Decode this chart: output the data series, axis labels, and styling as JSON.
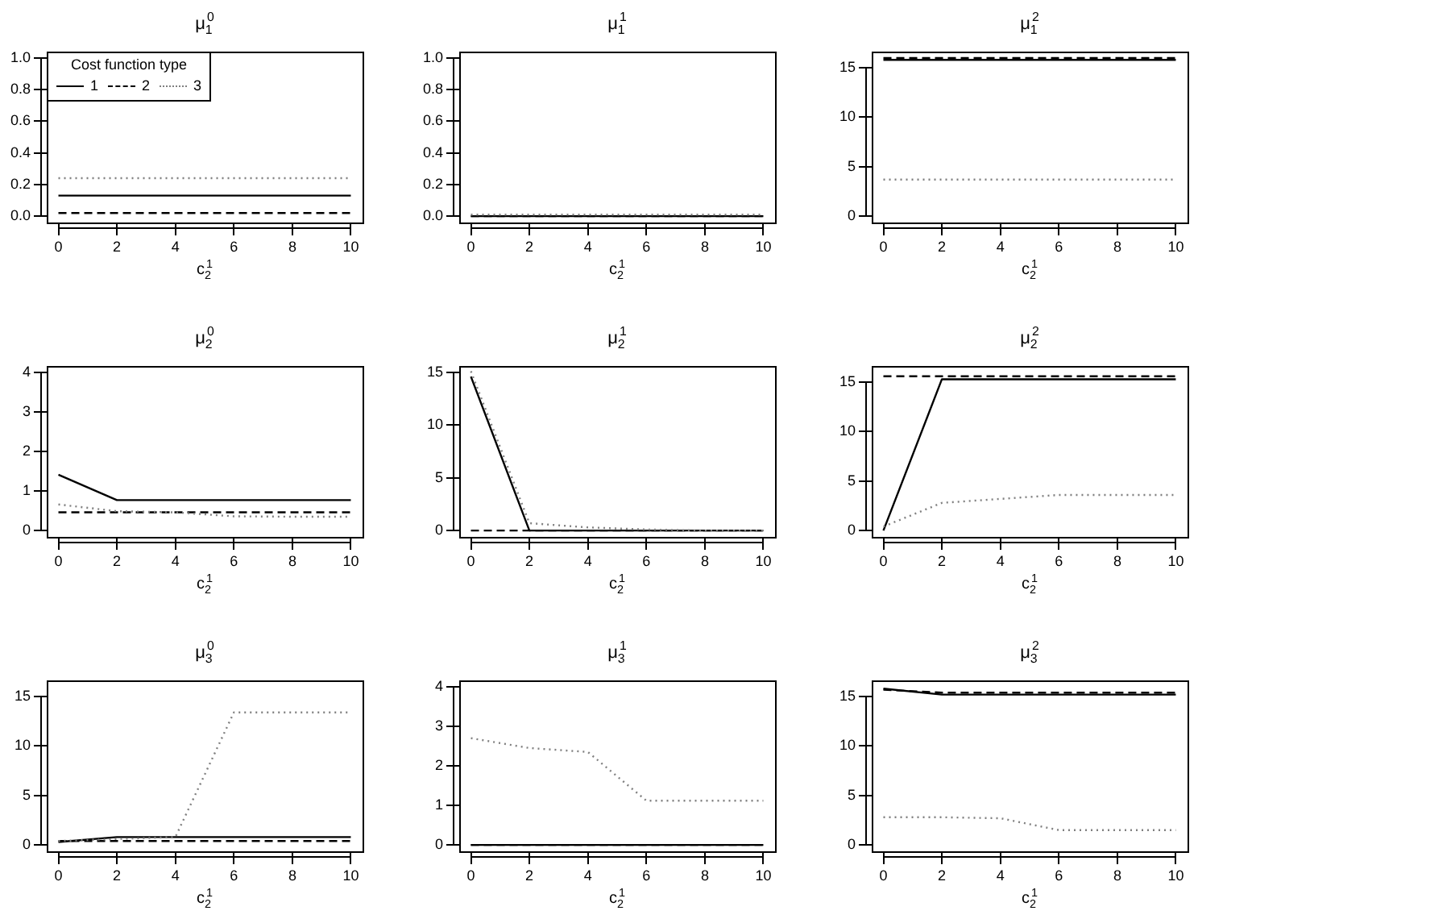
{
  "chart_data": [
    {
      "type": "line",
      "title": "μ$_{1}$$^{0}$",
      "xlabel": "c$_{2}$$^{1}$",
      "x": [
        0,
        2,
        4,
        6,
        8,
        10
      ],
      "xlim": [
        -0.4,
        10.4
      ],
      "xticks": [
        0,
        2,
        4,
        6,
        8,
        10
      ],
      "ylim": [
        -0.04,
        1.04
      ],
      "yticks": [
        {
          "value": 0,
          "label": "0.0"
        },
        {
          "value": 0.2,
          "label": "0.2"
        },
        {
          "value": 0.4,
          "label": "0.4"
        },
        {
          "value": 0.6,
          "label": "0.6"
        },
        {
          "value": 0.8,
          "label": "0.8"
        },
        {
          "value": 1,
          "label": "1.0"
        }
      ],
      "legend": "top left",
      "legend_title": "Cost function type",
      "series": [
        {
          "name": "1",
          "color": "#000000",
          "line_style": "solid",
          "values": [
            0.13,
            0.13,
            0.13,
            0.13,
            0.13,
            0.13
          ]
        },
        {
          "name": "2",
          "color": "#000000",
          "line_style": "dashed",
          "values": [
            0.02,
            0.02,
            0.02,
            0.02,
            0.02,
            0.02
          ]
        },
        {
          "name": "3",
          "color": "#808080",
          "line_style": "dotted",
          "values": [
            0.24,
            0.24,
            0.24,
            0.24,
            0.24,
            0.24
          ]
        }
      ]
    },
    {
      "type": "line",
      "title": "μ$_{1}$$^{1}$",
      "xlabel": "c$_{2}$$^{1}$",
      "x": [
        0,
        2,
        4,
        6,
        8,
        10
      ],
      "xlim": [
        -0.4,
        10.4
      ],
      "xticks": [
        0,
        2,
        4,
        6,
        8,
        10
      ],
      "ylim": [
        -0.04,
        1.04
      ],
      "yticks": [
        {
          "value": 0,
          "label": "0.0"
        },
        {
          "value": 0.2,
          "label": "0.2"
        },
        {
          "value": 0.4,
          "label": "0.4"
        },
        {
          "value": 0.6,
          "label": "0.6"
        },
        {
          "value": 0.8,
          "label": "0.8"
        },
        {
          "value": 1,
          "label": "1.0"
        }
      ],
      "series": [
        {
          "color": "#000000",
          "line_style": "solid",
          "values": [
            0,
            0,
            0,
            0,
            0,
            0
          ]
        },
        {
          "color": "#000000",
          "line_style": "dashed",
          "values": [
            0,
            0,
            0,
            0,
            0,
            0
          ]
        },
        {
          "color": "#808080",
          "line_style": "dotted",
          "values": [
            0.01,
            0.01,
            0.01,
            0.01,
            0.01,
            0.01
          ]
        }
      ]
    },
    {
      "type": "line",
      "title": "μ$_{1}$$^{2}$",
      "xlabel": "c$_{2}$$^{1}$",
      "x": [
        0,
        2,
        4,
        6,
        8,
        10
      ],
      "xlim": [
        -0.4,
        10.4
      ],
      "xticks": [
        0,
        2,
        4,
        6,
        8,
        10
      ],
      "ylim": [
        -0.64,
        16.64
      ],
      "yticks": [
        0,
        5,
        10,
        15
      ],
      "series": [
        {
          "color": "#000000",
          "line_style": "solid",
          "values": [
            15.8,
            15.8,
            15.8,
            15.8,
            15.8,
            15.8
          ]
        },
        {
          "color": "#000000",
          "line_style": "dashed",
          "values": [
            16,
            16,
            16,
            16,
            16,
            16
          ]
        },
        {
          "color": "#808080",
          "line_style": "dotted",
          "values": [
            3.7,
            3.7,
            3.7,
            3.7,
            3.7,
            3.7
          ]
        }
      ]
    },
    {
      "type": "line",
      "title": "μ$_{2}$$^{0}$",
      "xlabel": "c$_{2}$$^{1}$",
      "x": [
        0,
        2,
        4,
        6,
        8,
        10
      ],
      "xlim": [
        -0.4,
        10.4
      ],
      "xticks": [
        0,
        2,
        4,
        6,
        8,
        10
      ],
      "ylim": [
        -0.16,
        4.16
      ],
      "yticks": [
        0,
        1,
        2,
        3,
        4
      ],
      "series": [
        {
          "color": "#000000",
          "line_style": "solid",
          "values": [
            1.41,
            0.77,
            0.77,
            0.77,
            0.77,
            0.77
          ]
        },
        {
          "color": "#000000",
          "line_style": "dashed",
          "values": [
            0.46,
            0.46,
            0.46,
            0.46,
            0.46,
            0.46
          ]
        },
        {
          "color": "#808080",
          "line_style": "dotted",
          "values": [
            0.66,
            0.49,
            0.46,
            0.36,
            0.35,
            0.35
          ]
        }
      ]
    },
    {
      "type": "line",
      "title": "μ$_{2}$$^{1}$",
      "xlabel": "c$_{2}$$^{1}$",
      "x": [
        0,
        2,
        4,
        6,
        8,
        10
      ],
      "xlim": [
        -0.4,
        10.4
      ],
      "xticks": [
        0,
        2,
        4,
        6,
        8,
        10
      ],
      "ylim": [
        -0.6,
        15.6
      ],
      "yticks": [
        0,
        5,
        10,
        15
      ],
      "series": [
        {
          "color": "#000000",
          "line_style": "solid",
          "values": [
            14.6,
            0,
            0,
            0,
            0,
            0
          ]
        },
        {
          "color": "#000000",
          "line_style": "dashed",
          "values": [
            0,
            0,
            0,
            0,
            0,
            0
          ]
        },
        {
          "color": "#808080",
          "line_style": "dotted",
          "values": [
            15.1,
            0.7,
            0.3,
            0.1,
            0,
            0
          ]
        }
      ]
    },
    {
      "type": "line",
      "title": "μ$_{2}$$^{2}$",
      "xlabel": "c$_{2}$$^{1}$",
      "x": [
        0,
        2,
        4,
        6,
        8,
        10
      ],
      "xlim": [
        -0.4,
        10.4
      ],
      "xticks": [
        0,
        2,
        4,
        6,
        8,
        10
      ],
      "ylim": [
        -0.64,
        16.64
      ],
      "yticks": [
        0,
        5,
        10,
        15
      ],
      "series": [
        {
          "color": "#000000",
          "line_style": "solid",
          "values": [
            0,
            15.3,
            15.3,
            15.3,
            15.3,
            15.3
          ]
        },
        {
          "color": "#000000",
          "line_style": "dashed",
          "values": [
            15.6,
            15.6,
            15.6,
            15.6,
            15.6,
            15.6
          ]
        },
        {
          "color": "#808080",
          "line_style": "dotted",
          "values": [
            0.4,
            2.8,
            3.2,
            3.6,
            3.6,
            3.6
          ]
        }
      ]
    },
    {
      "type": "line",
      "title": "μ$_{3}$$^{0}$",
      "xlabel": "c$_{2}$$^{1}$",
      "x": [
        0,
        2,
        4,
        6,
        8,
        10
      ],
      "xlim": [
        -0.4,
        10.4
      ],
      "xticks": [
        0,
        2,
        4,
        6,
        8,
        10
      ],
      "ylim": [
        -0.64,
        16.64
      ],
      "yticks": [
        0,
        5,
        10,
        15
      ],
      "series": [
        {
          "color": "#000000",
          "line_style": "solid",
          "values": [
            0.3,
            0.8,
            0.8,
            0.8,
            0.8,
            0.8
          ]
        },
        {
          "color": "#000000",
          "line_style": "dashed",
          "values": [
            0.4,
            0.4,
            0.4,
            0.4,
            0.4,
            0.4
          ]
        },
        {
          "color": "#808080",
          "line_style": "dotted",
          "values": [
            0.4,
            0.6,
            0.8,
            13.4,
            13.4,
            13.4
          ]
        }
      ]
    },
    {
      "type": "line",
      "title": "μ$_{3}$$^{1}$",
      "xlabel": "c$_{2}$$^{1}$",
      "x": [
        0,
        2,
        4,
        6,
        8,
        10
      ],
      "xlim": [
        -0.4,
        10.4
      ],
      "xticks": [
        0,
        2,
        4,
        6,
        8,
        10
      ],
      "ylim": [
        -0.16,
        4.16
      ],
      "yticks": [
        0,
        1,
        2,
        3,
        4
      ],
      "series": [
        {
          "color": "#000000",
          "line_style": "solid",
          "values": [
            0,
            0,
            0,
            0,
            0,
            0
          ]
        },
        {
          "color": "#000000",
          "line_style": "dashed",
          "values": [
            0,
            0,
            0,
            0,
            0,
            0
          ]
        },
        {
          "color": "#808080",
          "line_style": "dotted",
          "values": [
            2.7,
            2.45,
            2.35,
            1.12,
            1.12,
            1.12
          ]
        }
      ]
    },
    {
      "type": "line",
      "title": "μ$_{3}$$^{2}$",
      "xlabel": "c$_{2}$$^{1}$",
      "x": [
        0,
        2,
        4,
        6,
        8,
        10
      ],
      "xlim": [
        -0.4,
        10.4
      ],
      "xticks": [
        0,
        2,
        4,
        6,
        8,
        10
      ],
      "ylim": [
        -0.64,
        16.64
      ],
      "yticks": [
        0,
        5,
        10,
        15
      ],
      "series": [
        {
          "color": "#000000",
          "line_style": "solid",
          "values": [
            15.8,
            15.2,
            15.2,
            15.2,
            15.2,
            15.2
          ]
        },
        {
          "color": "#000000",
          "line_style": "dashed",
          "values": [
            15.7,
            15.4,
            15.4,
            15.4,
            15.4,
            15.4
          ]
        },
        {
          "color": "#808080",
          "line_style": "dotted",
          "values": [
            2.8,
            2.8,
            2.7,
            1.5,
            1.5,
            1.5
          ]
        }
      ]
    }
  ]
}
